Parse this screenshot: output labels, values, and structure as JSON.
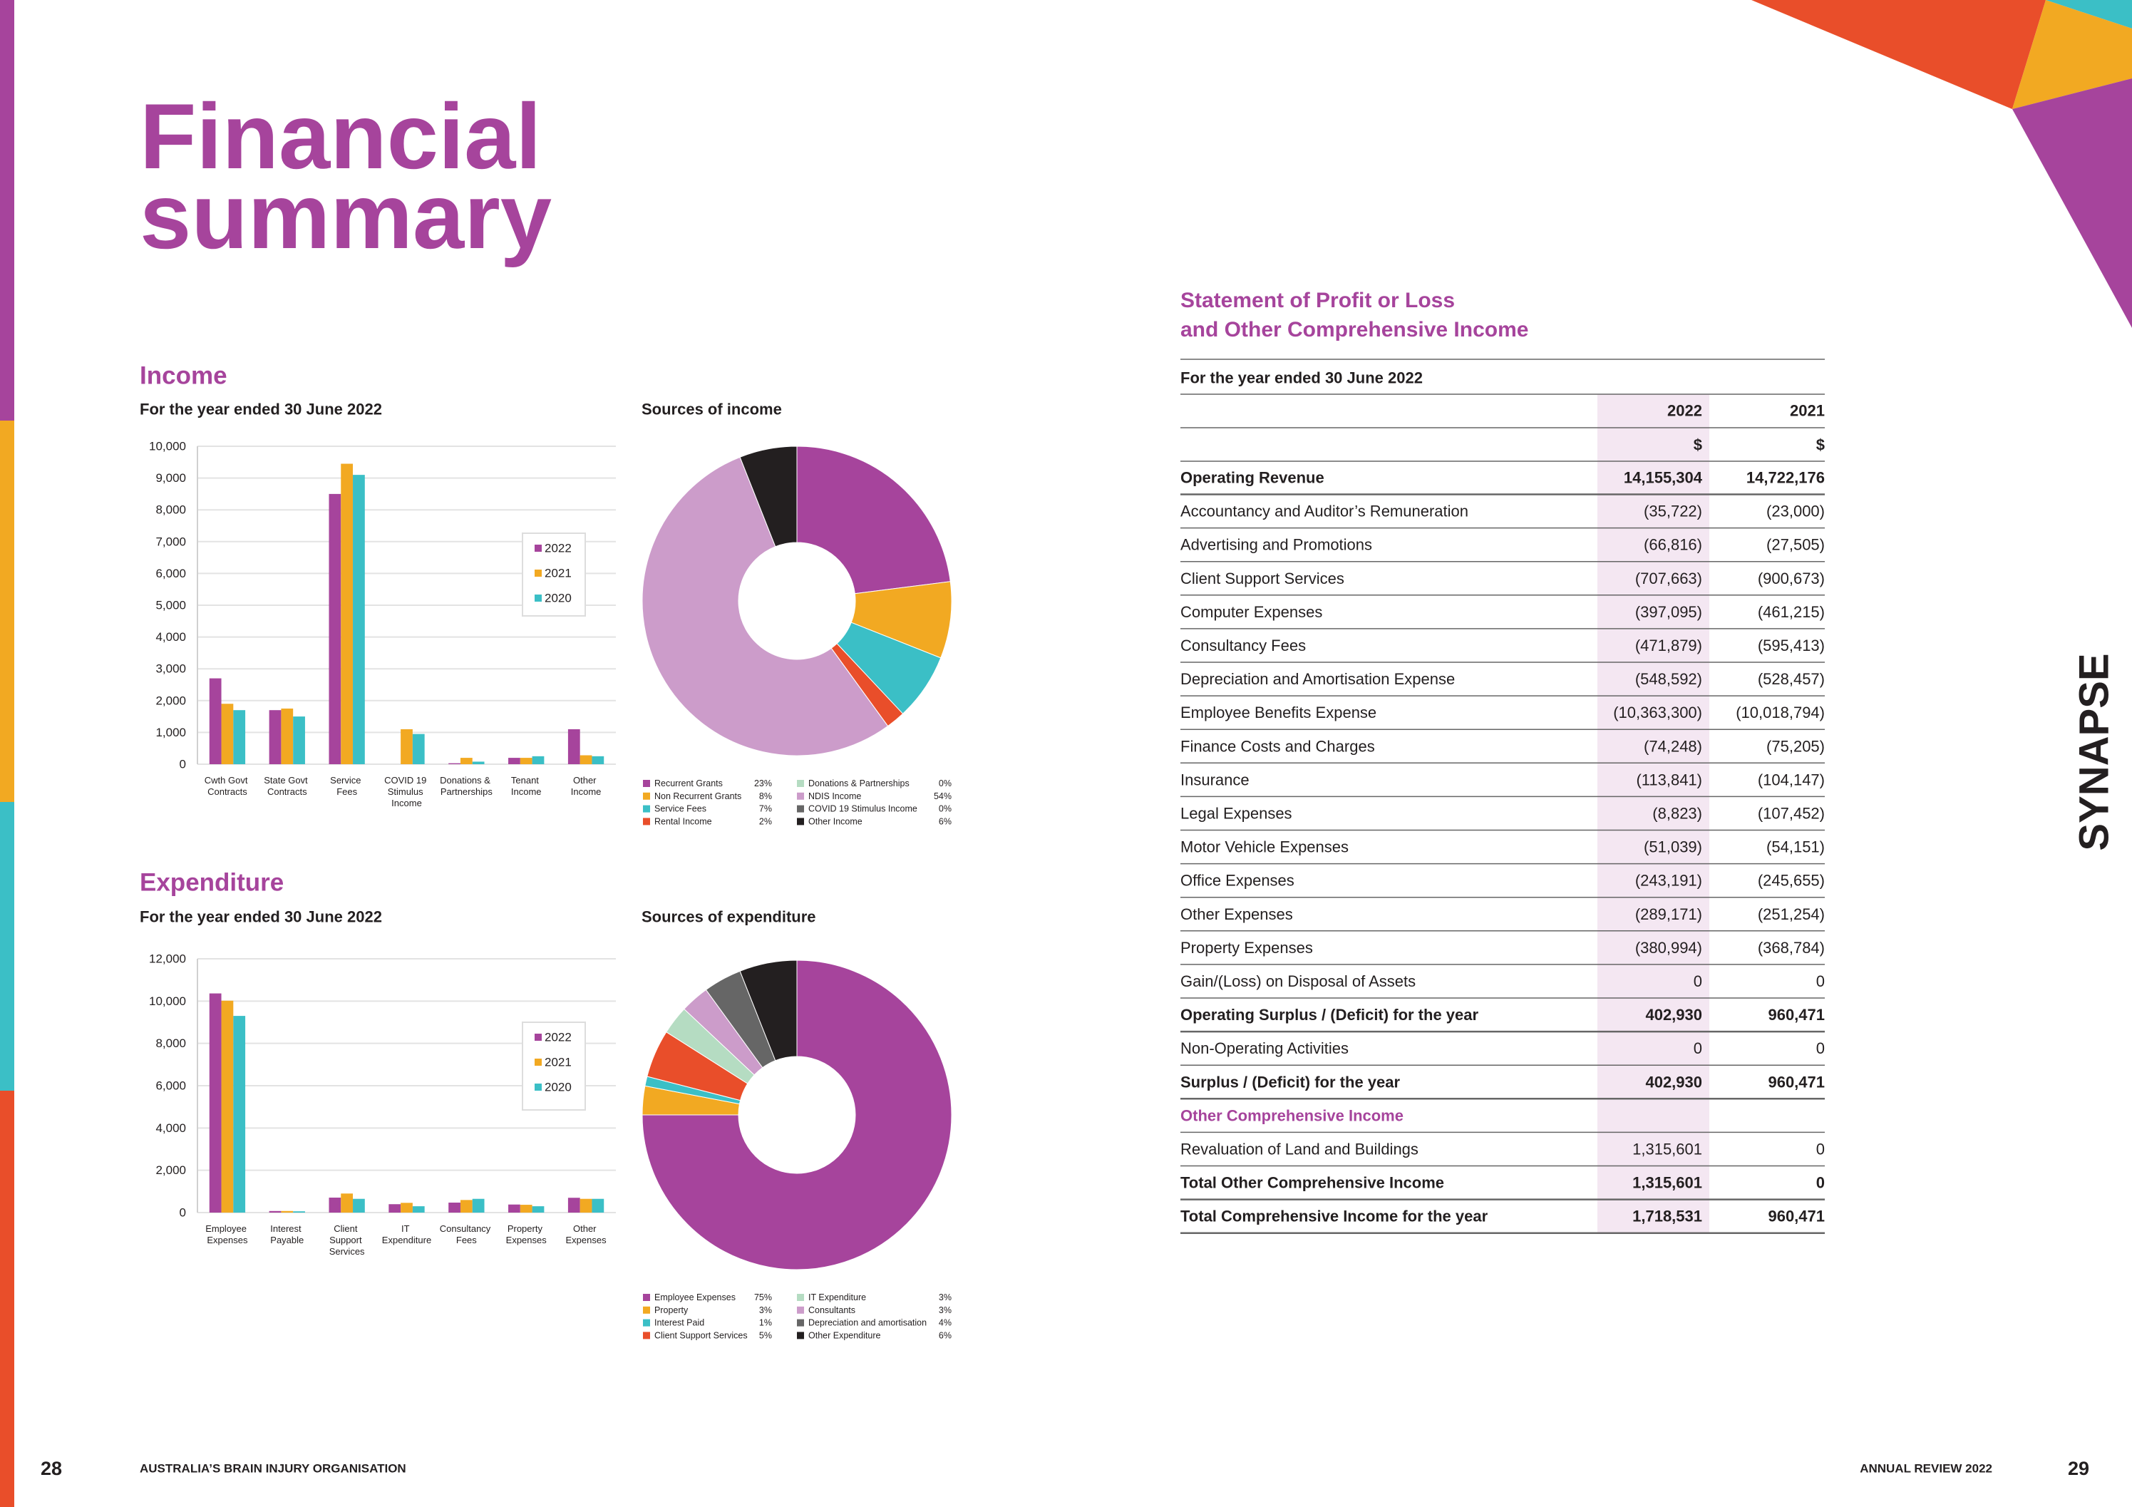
{
  "title": "Financial summary",
  "sections": {
    "income": "Income",
    "expenditure": "Expenditure"
  },
  "chart_data": [
    {
      "type": "bar",
      "title": "For the year ended 30 June 2022",
      "categories": [
        "Cwth Govt Contracts",
        "State Govt Contracts",
        "Service Fees",
        "COVID 19 Stimulus Income",
        "Donations & Partnerships",
        "Tenant Income",
        "Other Income"
      ],
      "series": [
        {
          "name": "2022",
          "color": "#a6449c",
          "values": [
            2700,
            1700,
            8500,
            0,
            30,
            200,
            1100
          ]
        },
        {
          "name": "2021",
          "color": "#f2a922",
          "values": [
            1900,
            1750,
            9450,
            1100,
            200,
            200,
            280
          ]
        },
        {
          "name": "2020",
          "color": "#3bbfc6",
          "values": [
            1700,
            1500,
            9100,
            950,
            80,
            250,
            250
          ]
        }
      ],
      "ylim": [
        0,
        10000
      ],
      "yticks": [
        0,
        {
          "value": 1000,
          "label": "1,000"
        },
        {
          "value": 2000,
          "label": "2,000"
        },
        {
          "value": 3000,
          "label": "3,000"
        },
        {
          "value": 4000,
          "label": "4,000"
        },
        {
          "value": 5000,
          "label": "5,000"
        },
        {
          "value": 6000,
          "label": "6,000"
        },
        {
          "value": 7000,
          "label": "7,000"
        },
        {
          "value": 8000,
          "label": "8,000"
        },
        {
          "value": 9000,
          "label": "9,000"
        },
        {
          "value": 10000,
          "label": "10,000"
        }
      ],
      "grid": true,
      "legend": "right"
    },
    {
      "type": "pie",
      "title": "Sources of income",
      "donut": true,
      "categories": [
        "Recurrent Grants",
        "Non Recurrent Grants",
        "Service Fees",
        "Rental Income",
        "Donations & Partnerships",
        "NDIS Income",
        "COVID 19 Stimulus Income",
        "Other Income"
      ],
      "values": [
        23,
        8,
        7,
        2,
        0,
        54,
        0,
        6
      ],
      "value_labels": [
        "23%",
        "8%",
        "7%",
        "2%",
        "0%",
        "54%",
        "0%",
        "6%"
      ],
      "colors": [
        "#a6449c",
        "#f2a922",
        "#3bbfc6",
        "#e94e2a",
        "#b5dcc2",
        "#cc9cca",
        "#666666",
        "#231f20"
      ]
    },
    {
      "type": "bar",
      "title": "For the year ended 30 June 2022",
      "categories": [
        "Employee Expenses",
        "Interest Payable",
        "Client Support Services",
        "IT Expenditure",
        "Consultancy Fees",
        "Property Expenses",
        "Other Expenses"
      ],
      "series": [
        {
          "name": "2022",
          "color": "#a6449c",
          "values": [
            10363,
            74,
            708,
            397,
            472,
            381,
            700
          ]
        },
        {
          "name": "2021",
          "color": "#f2a922",
          "values": [
            10019,
            75,
            901,
            461,
            595,
            369,
            650
          ]
        },
        {
          "name": "2020",
          "color": "#3bbfc6",
          "values": [
            9300,
            60,
            650,
            300,
            650,
            300,
            650
          ]
        }
      ],
      "ylim": [
        0,
        12000
      ],
      "yticks": [
        0,
        {
          "value": 2000,
          "label": "2,000"
        },
        {
          "value": 4000,
          "label": "4,000"
        },
        {
          "value": 6000,
          "label": "6,000"
        },
        {
          "value": 8000,
          "label": "8,000"
        },
        {
          "value": 10000,
          "label": "10,000"
        },
        {
          "value": 12000,
          "label": "12,000"
        }
      ],
      "grid": true,
      "legend": "right"
    },
    {
      "type": "pie",
      "title": "Sources of expenditure",
      "donut": true,
      "categories": [
        "Employee Expenses",
        "Property",
        "Interest Paid",
        "Client Support Services",
        "IT Expenditure",
        "Consultants",
        "Depreciation and amortisation",
        "Other Expenditure"
      ],
      "values": [
        75,
        3,
        1,
        5,
        3,
        3,
        4,
        6
      ],
      "value_labels": [
        "75%",
        "3%",
        "1%",
        "5%",
        "3%",
        "3%",
        "4%",
        "6%"
      ],
      "colors": [
        "#a6449c",
        "#f2a922",
        "#3bbfc6",
        "#e94e2a",
        "#b5dcc2",
        "#cc9cca",
        "#666666",
        "#231f20"
      ]
    }
  ],
  "statement": {
    "title": "Statement of Profit or Loss and Other Comprehensive Income",
    "period": "For the year ended 30 June 2022",
    "columns": [
      "2022",
      "2021"
    ],
    "units": [
      "$",
      "$"
    ],
    "rows": [
      [
        "Operating Revenue",
        "14,155,304",
        "14,722,176"
      ],
      [
        "Accountancy and Auditor’s Remuneration",
        "(35,722)",
        "(23,000)"
      ],
      [
        "Advertising and Promotions",
        "(66,816)",
        "(27,505)"
      ],
      [
        "Client Support Services",
        "(707,663)",
        "(900,673)"
      ],
      [
        "Computer Expenses",
        "(397,095)",
        "(461,215)"
      ],
      [
        "Consultancy Fees",
        "(471,879)",
        "(595,413)"
      ],
      [
        "Depreciation and Amortisation Expense",
        "(548,592)",
        "(528,457)"
      ],
      [
        "Employee Benefits Expense",
        "(10,363,300)",
        "(10,018,794)"
      ],
      [
        "Finance Costs and Charges",
        "(74,248)",
        "(75,205)"
      ],
      [
        "Insurance",
        "(113,841)",
        "(104,147)"
      ],
      [
        "Legal Expenses",
        "(8,823)",
        "(107,452)"
      ],
      [
        "Motor Vehicle Expenses",
        "(51,039)",
        "(54,151)"
      ],
      [
        "Office Expenses",
        "(243,191)",
        "(245,655)"
      ],
      [
        "Other Expenses",
        "(289,171)",
        "(251,254)"
      ],
      [
        "Property Expenses",
        "(380,994)",
        "(368,784)"
      ],
      [
        "Gain/(Loss) on Disposal of Assets",
        "0",
        "0"
      ],
      [
        "Operating Surplus / (Deficit) for the year",
        "402,930",
        "960,471"
      ],
      [
        "Non-Operating Activities",
        "0",
        "0"
      ],
      [
        "Surplus / (Deficit) for the year",
        "402,930",
        "960,471"
      ],
      [
        "Other Comprehensive Income"
      ],
      [
        "Revaluation of Land and Buildings",
        "1,315,601",
        "0"
      ],
      [
        "Total Other Comprehensive Income",
        "1,315,601",
        "0"
      ],
      [
        "Total Comprehensive Income for the year",
        "1,718,531",
        "960,471"
      ]
    ]
  },
  "brand": "SYNAPSE",
  "footer": {
    "left_page": "28",
    "left_text": "AUSTRALIA’S BRAIN INJURY ORGANISATION",
    "right_text": "ANNUAL REVIEW 2022",
    "right_page": "29"
  }
}
